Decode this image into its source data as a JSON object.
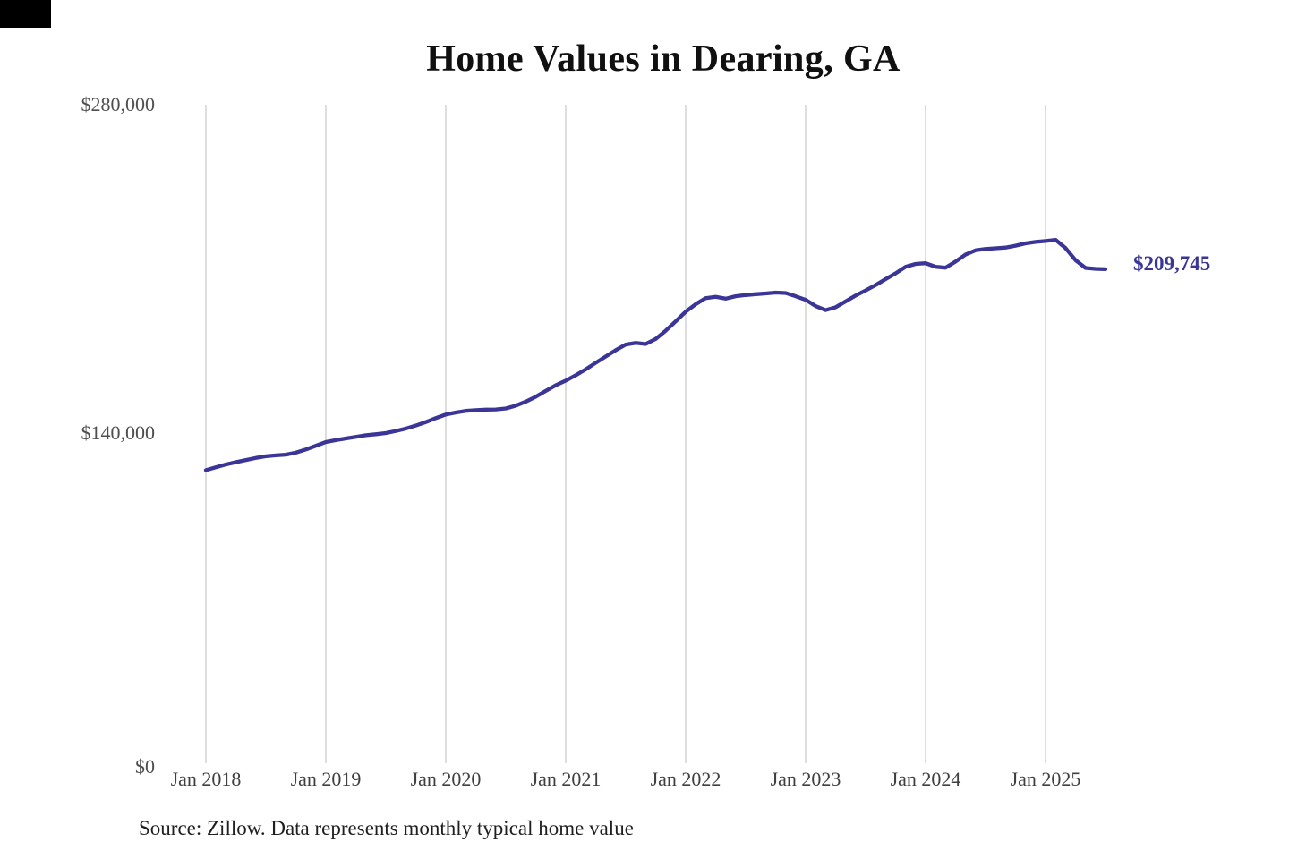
{
  "ui": {
    "corner_box_color": "#000000",
    "background": "#ffffff"
  },
  "chart_data": {
    "type": "line",
    "title": "Home Values in Dearing, GA",
    "source": "Source: Zillow. Data represents monthly typical home value",
    "end_value_label": "$209,745",
    "legend": "none",
    "grid": "vertical-only",
    "ylim": [
      0,
      280000
    ],
    "y_ticks": [
      {
        "label": "$280,000",
        "value": 280000
      },
      {
        "label": "$140,000",
        "value": 140000
      },
      {
        "label": "$0",
        "value": 0
      }
    ],
    "x_tick_labels": [
      "Jan 2018",
      "Jan 2019",
      "Jan 2020",
      "Jan 2021",
      "Jan 2022",
      "Jan 2023",
      "Jan 2024",
      "Jan 2025"
    ],
    "x_start_month": "2018-01",
    "x_end_month": "2025-07",
    "frequency": "monthly",
    "colors": {
      "line": "#3a3597",
      "gridline": "#cbcbcb",
      "axis_text": "#4e4e4e",
      "title_text": "#101010",
      "source_text": "#1f1f1f"
    },
    "series": [
      {
        "name": "Typical home value",
        "values": [
          124000,
          125200,
          126400,
          127400,
          128300,
          129200,
          129900,
          130300,
          130600,
          131500,
          132800,
          134400,
          136000,
          136800,
          137500,
          138200,
          138900,
          139300,
          139800,
          140700,
          141700,
          143000,
          144500,
          146200,
          147700,
          148600,
          149300,
          149600,
          149800,
          149900,
          150300,
          151500,
          153200,
          155300,
          157800,
          160200,
          162200,
          164500,
          167000,
          169800,
          172500,
          175200,
          177600,
          178300,
          177800,
          180000,
          183500,
          187500,
          191600,
          194800,
          197400,
          198000,
          197200,
          198200,
          198700,
          199100,
          199400,
          199800,
          199600,
          198200,
          196700,
          194000,
          192300,
          193500,
          196000,
          198500,
          200700,
          203000,
          205500,
          208000,
          210800,
          212000,
          212300,
          210800,
          210400,
          213000,
          216000,
          217800,
          218400,
          218700,
          219000,
          219800,
          220800,
          221400,
          221800,
          222300,
          218800,
          213600,
          210300,
          209900,
          209745
        ]
      }
    ]
  }
}
